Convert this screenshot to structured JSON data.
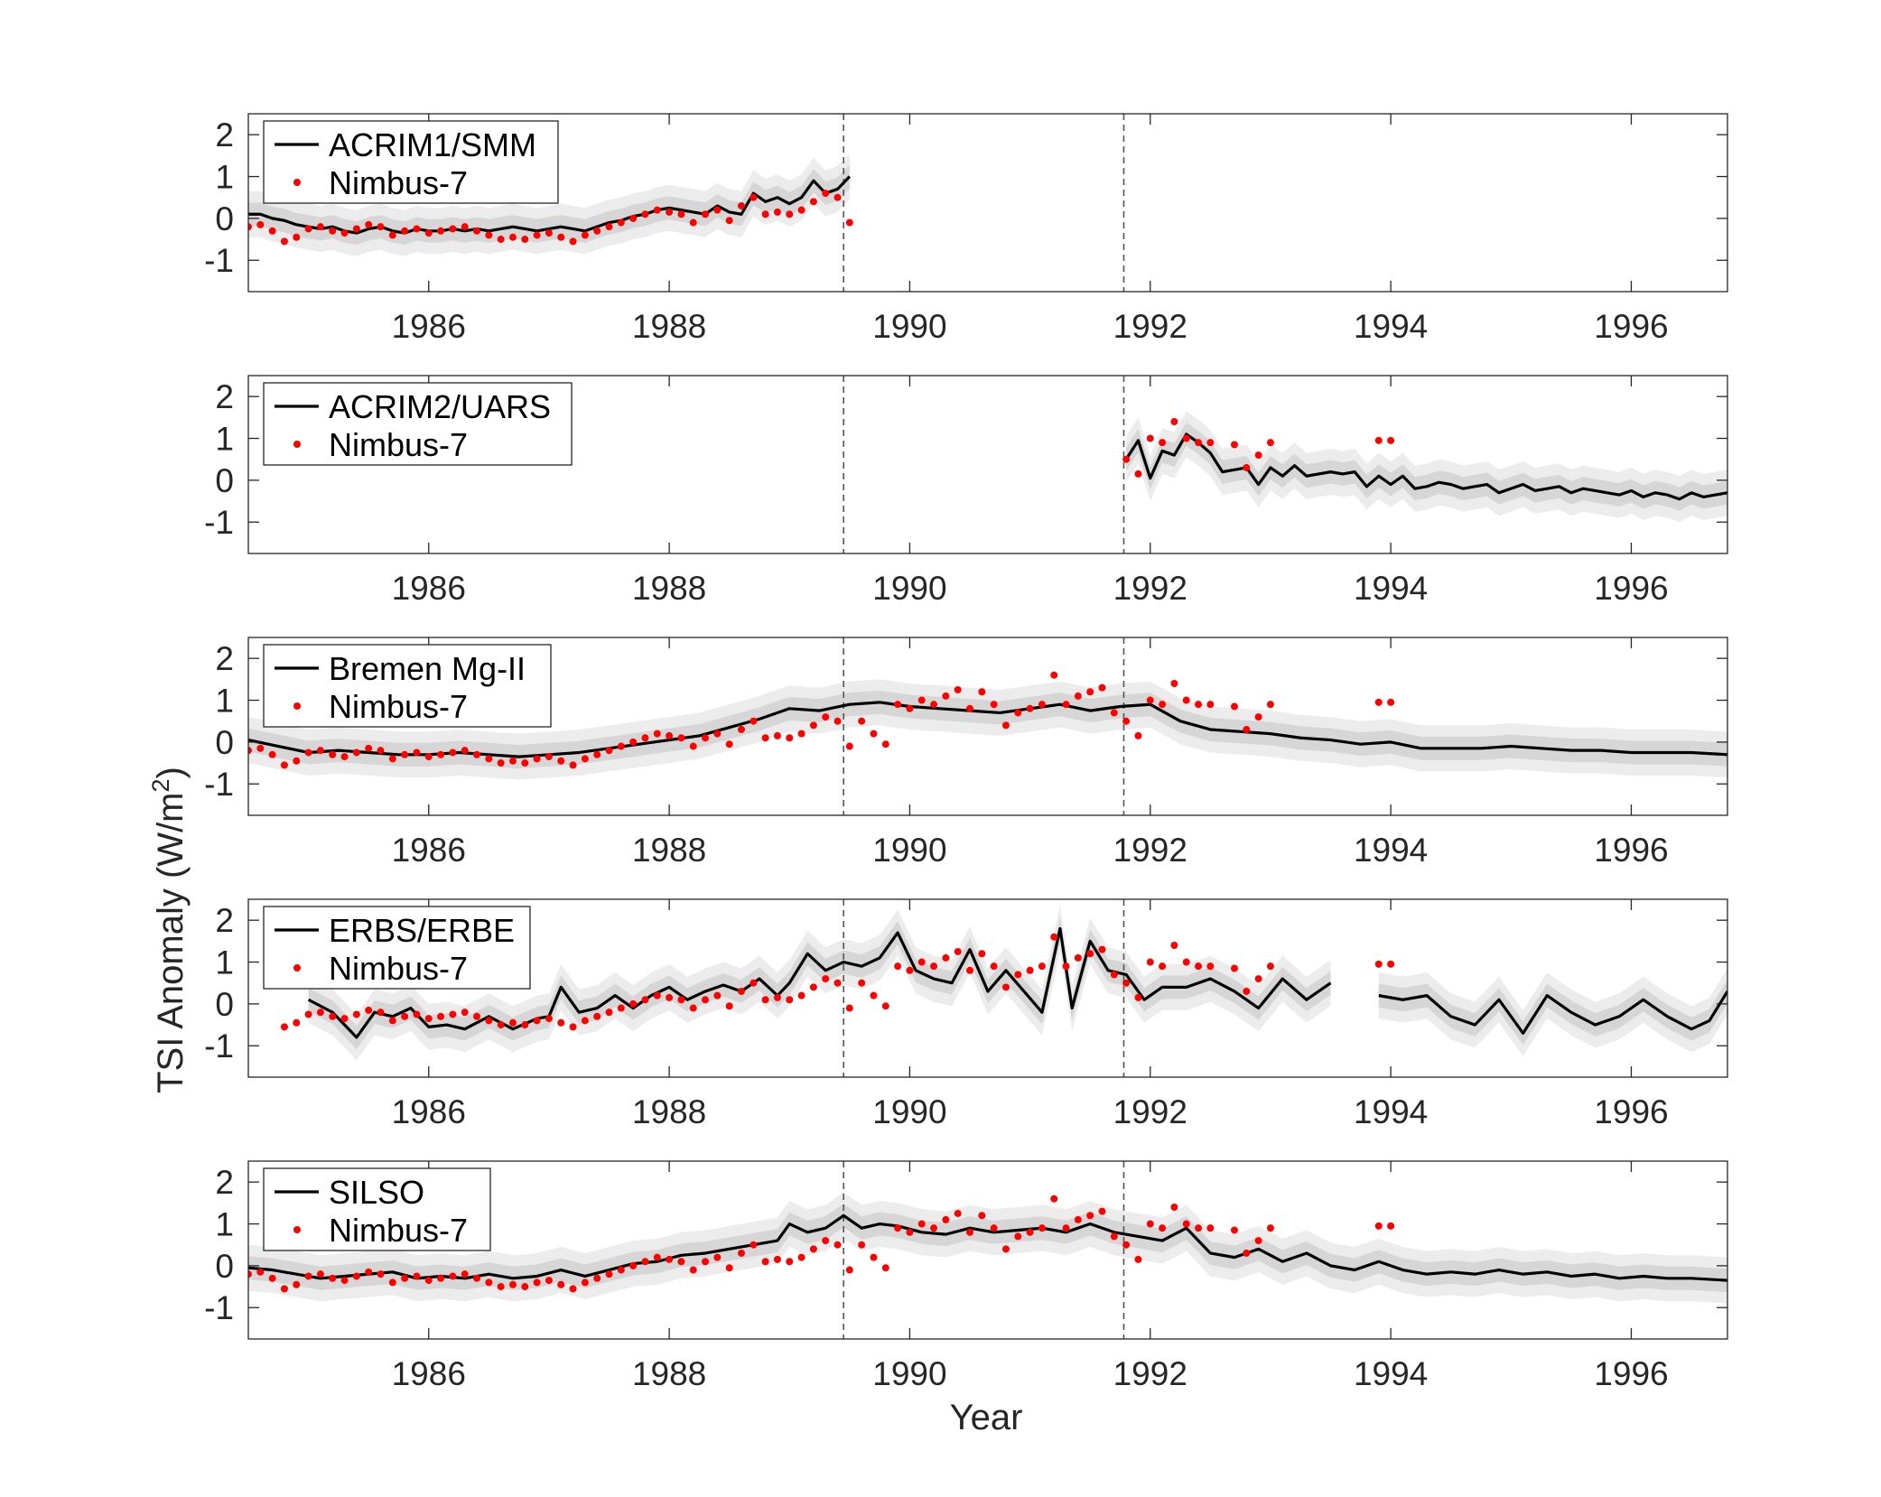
{
  "chart_data": {
    "type": "line",
    "xlabel": "Year",
    "ylabel": "TSI Anomaly (W/m",
    "ylabel_superscript": "2",
    "ylabel_close": ")",
    "xlim": [
      1984.5,
      1996.8
    ],
    "ylim": [
      -1.75,
      2.5
    ],
    "xticks": [
      1986,
      1988,
      1990,
      1992,
      1994,
      1996
    ],
    "xtick_labels": [
      "1986",
      "1988",
      "1990",
      "1992",
      "1994",
      "1996"
    ],
    "yticks": [
      -1,
      0,
      1,
      2
    ],
    "ytick_labels": [
      "-1",
      "0",
      "1",
      "2"
    ],
    "vlines": [
      1989.45,
      1991.78
    ],
    "band_outer": 0.55,
    "band_inner": 0.28,
    "colors": {
      "line": "#000000",
      "dots": "#ff0000",
      "band_outer": "#ececec",
      "band_inner": "#d6d6d6",
      "vline": "#555555"
    },
    "nimbus7": {
      "name": "Nimbus-7",
      "x": [
        1984.5,
        1984.6,
        1984.7,
        1984.8,
        1984.9,
        1985.0,
        1985.1,
        1985.2,
        1985.3,
        1985.4,
        1985.5,
        1985.6,
        1985.7,
        1985.8,
        1985.9,
        1986.0,
        1986.1,
        1986.2,
        1986.3,
        1986.4,
        1986.5,
        1986.6,
        1986.7,
        1986.8,
        1986.9,
        1987.0,
        1987.1,
        1987.2,
        1987.3,
        1987.4,
        1987.5,
        1987.6,
        1987.7,
        1987.8,
        1987.9,
        1988.0,
        1988.1,
        1988.2,
        1988.3,
        1988.4,
        1988.5,
        1988.6,
        1988.7,
        1988.8,
        1988.9,
        1989.0,
        1989.1,
        1989.2,
        1989.3,
        1989.4,
        1989.5,
        1989.6,
        1989.7,
        1989.8,
        1989.9,
        1990.0,
        1990.1,
        1990.2,
        1990.3,
        1990.4,
        1990.5,
        1990.6,
        1990.7,
        1990.8,
        1990.9,
        1991.0,
        1991.1,
        1991.2,
        1991.3,
        1991.4,
        1991.5,
        1991.6,
        1991.7,
        1991.8,
        1991.9,
        1992.0,
        1992.1,
        1992.2,
        1992.3,
        1992.4,
        1992.5,
        1992.7,
        1992.8,
        1992.9,
        1993.0,
        1993.9,
        1994.0
      ],
      "y": [
        -0.2,
        -0.15,
        -0.3,
        -0.55,
        -0.45,
        -0.25,
        -0.2,
        -0.3,
        -0.35,
        -0.25,
        -0.15,
        -0.2,
        -0.4,
        -0.3,
        -0.25,
        -0.35,
        -0.3,
        -0.25,
        -0.2,
        -0.3,
        -0.4,
        -0.5,
        -0.45,
        -0.5,
        -0.4,
        -0.35,
        -0.45,
        -0.55,
        -0.4,
        -0.3,
        -0.2,
        -0.1,
        0.0,
        0.1,
        0.2,
        0.15,
        0.1,
        -0.1,
        0.1,
        0.2,
        -0.05,
        0.3,
        0.5,
        0.1,
        0.15,
        0.1,
        0.2,
        0.4,
        0.6,
        0.5,
        -0.1,
        0.5,
        0.2,
        -0.05,
        0.9,
        0.8,
        1.0,
        0.9,
        1.1,
        1.25,
        0.8,
        1.2,
        0.9,
        0.4,
        0.7,
        0.8,
        0.9,
        1.6,
        0.9,
        1.1,
        1.2,
        1.3,
        0.7,
        0.5,
        0.15,
        1.0,
        0.9,
        1.4,
        1.0,
        0.9,
        0.9,
        0.85,
        0.3,
        0.6,
        0.9,
        0.95,
        0.95
      ]
    },
    "panels": [
      {
        "name": "ACRIM1/SMM",
        "legend": [
          "ACRIM1/SMM",
          "Nimbus-7"
        ],
        "nimbus_range": [
          1984.5,
          1989.5
        ],
        "x": [
          1984.5,
          1984.6,
          1984.7,
          1984.8,
          1984.9,
          1985.0,
          1985.1,
          1985.2,
          1985.3,
          1985.4,
          1985.5,
          1985.6,
          1985.7,
          1985.8,
          1985.9,
          1986.0,
          1986.1,
          1986.2,
          1986.3,
          1986.4,
          1986.5,
          1986.6,
          1986.7,
          1986.8,
          1986.9,
          1987.0,
          1987.1,
          1987.2,
          1987.3,
          1987.4,
          1987.5,
          1987.6,
          1987.7,
          1987.8,
          1987.9,
          1988.0,
          1988.1,
          1988.2,
          1988.3,
          1988.4,
          1988.5,
          1988.6,
          1988.7,
          1988.8,
          1988.9,
          1989.0,
          1989.1,
          1989.2,
          1989.3,
          1989.4,
          1989.5
        ],
        "y": [
          0.1,
          0.1,
          0.0,
          -0.05,
          -0.15,
          -0.2,
          -0.25,
          -0.2,
          -0.3,
          -0.35,
          -0.25,
          -0.2,
          -0.3,
          -0.35,
          -0.25,
          -0.3,
          -0.3,
          -0.25,
          -0.3,
          -0.25,
          -0.3,
          -0.25,
          -0.2,
          -0.25,
          -0.3,
          -0.25,
          -0.2,
          -0.25,
          -0.3,
          -0.2,
          -0.1,
          -0.05,
          0.05,
          0.1,
          0.2,
          0.25,
          0.2,
          0.15,
          0.1,
          0.3,
          0.15,
          0.1,
          0.6,
          0.4,
          0.5,
          0.35,
          0.5,
          0.9,
          0.6,
          0.7,
          1.0
        ]
      },
      {
        "name": "ACRIM2/UARS",
        "legend": [
          "ACRIM2/UARS",
          "Nimbus-7"
        ],
        "nimbus_range": [
          1991.8,
          1994.1
        ],
        "x": [
          1991.8,
          1991.9,
          1992.0,
          1992.1,
          1992.2,
          1992.3,
          1992.4,
          1992.5,
          1992.6,
          1992.7,
          1992.8,
          1992.9,
          1993.0,
          1993.1,
          1993.2,
          1993.3,
          1993.4,
          1993.5,
          1993.6,
          1993.7,
          1993.8,
          1993.9,
          1994.0,
          1994.1,
          1994.2,
          1994.3,
          1994.4,
          1994.5,
          1994.6,
          1994.7,
          1994.8,
          1994.9,
          1995.0,
          1995.1,
          1995.2,
          1995.3,
          1995.4,
          1995.5,
          1995.6,
          1995.7,
          1995.8,
          1995.9,
          1996.0,
          1996.1,
          1996.2,
          1996.3,
          1996.4,
          1996.5,
          1996.6,
          1996.7,
          1996.8
        ],
        "y": [
          0.5,
          0.95,
          0.05,
          0.7,
          0.6,
          1.1,
          0.9,
          0.65,
          0.2,
          0.25,
          0.3,
          -0.1,
          0.3,
          0.1,
          0.35,
          0.1,
          0.15,
          0.2,
          0.15,
          0.2,
          -0.15,
          0.1,
          -0.1,
          0.1,
          -0.2,
          -0.15,
          -0.05,
          -0.1,
          -0.2,
          -0.15,
          -0.1,
          -0.3,
          -0.2,
          -0.1,
          -0.25,
          -0.2,
          -0.15,
          -0.3,
          -0.2,
          -0.25,
          -0.3,
          -0.35,
          -0.25,
          -0.4,
          -0.3,
          -0.35,
          -0.45,
          -0.3,
          -0.4,
          -0.35,
          -0.3
        ]
      },
      {
        "name": "Bremen Mg-II",
        "legend": [
          "Bremen Mg-II",
          "Nimbus-7"
        ],
        "nimbus_range": [
          1984.5,
          1994.1
        ],
        "x": [
          1984.5,
          1984.75,
          1985.0,
          1985.25,
          1985.5,
          1985.75,
          1986.0,
          1986.25,
          1986.5,
          1986.75,
          1987.0,
          1987.25,
          1987.5,
          1987.75,
          1988.0,
          1988.25,
          1988.5,
          1988.75,
          1989.0,
          1989.25,
          1989.5,
          1989.75,
          1990.0,
          1990.25,
          1990.5,
          1990.75,
          1991.0,
          1991.25,
          1991.5,
          1991.75,
          1992.0,
          1992.25,
          1992.5,
          1992.75,
          1993.0,
          1993.25,
          1993.5,
          1993.75,
          1994.0,
          1994.25,
          1994.5,
          1994.75,
          1995.0,
          1995.25,
          1995.5,
          1995.75,
          1996.0,
          1996.25,
          1996.5,
          1996.8
        ],
        "y": [
          0.05,
          -0.1,
          -0.25,
          -0.2,
          -0.25,
          -0.3,
          -0.3,
          -0.25,
          -0.3,
          -0.35,
          -0.3,
          -0.25,
          -0.15,
          -0.05,
          0.05,
          0.15,
          0.35,
          0.55,
          0.8,
          0.75,
          0.9,
          0.95,
          0.85,
          0.8,
          0.75,
          0.7,
          0.8,
          0.9,
          0.75,
          0.85,
          0.9,
          0.5,
          0.3,
          0.25,
          0.2,
          0.1,
          0.05,
          -0.05,
          0.0,
          -0.15,
          -0.15,
          -0.15,
          -0.1,
          -0.15,
          -0.2,
          -0.2,
          -0.25,
          -0.25,
          -0.25,
          -0.3
        ]
      },
      {
        "name": "ERBS/ERBE",
        "legend": [
          "ERBS/ERBE",
          "Nimbus-7"
        ],
        "nimbus_range": [
          1984.8,
          1994.1
        ],
        "gaps": [
          1993.55
        ],
        "x": [
          1985.0,
          1985.2,
          1985.4,
          1985.55,
          1985.7,
          1985.85,
          1986.0,
          1986.15,
          1986.3,
          1986.5,
          1986.7,
          1986.9,
          1987.0,
          1987.1,
          1987.25,
          1987.4,
          1987.55,
          1987.7,
          1987.85,
          1988.0,
          1988.15,
          1988.3,
          1988.45,
          1988.6,
          1988.75,
          1988.9,
          1989.0,
          1989.15,
          1989.3,
          1989.45,
          1989.6,
          1989.75,
          1989.9,
          1990.05,
          1990.2,
          1990.35,
          1990.5,
          1990.65,
          1990.8,
          1990.95,
          1991.1,
          1991.25,
          1991.35,
          1991.5,
          1991.65,
          1991.8,
          1991.95,
          1992.1,
          1992.3,
          1992.5,
          1992.7,
          1992.9,
          1993.1,
          1993.3,
          1993.5,
          1993.9,
          1994.1,
          1994.3,
          1994.5,
          1994.7,
          1994.9,
          1995.1,
          1995.3,
          1995.5,
          1995.7,
          1995.9,
          1996.1,
          1996.3,
          1996.5,
          1996.65,
          1996.8
        ],
        "y": [
          0.1,
          -0.2,
          -0.8,
          -0.2,
          -0.3,
          -0.1,
          -0.55,
          -0.5,
          -0.6,
          -0.3,
          -0.6,
          -0.35,
          -0.3,
          0.4,
          -0.2,
          -0.1,
          0.2,
          -0.1,
          0.2,
          0.4,
          0.1,
          0.3,
          0.45,
          0.3,
          0.6,
          0.2,
          0.5,
          1.2,
          0.8,
          1.0,
          0.9,
          1.1,
          1.7,
          0.8,
          0.6,
          0.5,
          1.3,
          0.3,
          0.8,
          0.3,
          -0.2,
          1.8,
          -0.1,
          1.5,
          0.8,
          0.7,
          0.1,
          0.4,
          0.4,
          0.6,
          0.3,
          -0.1,
          0.6,
          0.1,
          0.5,
          0.2,
          0.1,
          0.2,
          -0.3,
          -0.5,
          0.1,
          -0.7,
          0.2,
          -0.2,
          -0.5,
          -0.3,
          0.1,
          -0.3,
          -0.6,
          -0.4,
          0.3
        ]
      },
      {
        "name": "SILSO",
        "legend": [
          "SILSO",
          "Nimbus-7"
        ],
        "nimbus_range": [
          1984.5,
          1994.1
        ],
        "x": [
          1984.5,
          1984.7,
          1984.9,
          1985.1,
          1985.3,
          1985.5,
          1985.7,
          1985.9,
          1986.1,
          1986.3,
          1986.5,
          1986.7,
          1986.9,
          1987.1,
          1987.3,
          1987.5,
          1987.7,
          1987.9,
          1988.1,
          1988.3,
          1988.5,
          1988.7,
          1988.9,
          1989.0,
          1989.15,
          1989.3,
          1989.45,
          1989.6,
          1989.75,
          1989.9,
          1990.1,
          1990.3,
          1990.5,
          1990.7,
          1990.9,
          1991.1,
          1991.3,
          1991.5,
          1991.7,
          1991.9,
          1992.1,
          1992.3,
          1992.5,
          1992.7,
          1992.9,
          1993.1,
          1993.3,
          1993.5,
          1993.7,
          1993.9,
          1994.1,
          1994.3,
          1994.5,
          1994.7,
          1994.9,
          1995.1,
          1995.3,
          1995.5,
          1995.7,
          1995.9,
          1996.1,
          1996.3,
          1996.5,
          1996.8
        ],
        "y": [
          -0.05,
          -0.1,
          -0.2,
          -0.3,
          -0.25,
          -0.2,
          -0.15,
          -0.3,
          -0.25,
          -0.3,
          -0.2,
          -0.3,
          -0.25,
          -0.1,
          -0.25,
          -0.1,
          0.05,
          0.1,
          0.25,
          0.3,
          0.4,
          0.5,
          0.6,
          1.0,
          0.8,
          0.9,
          1.2,
          0.9,
          1.0,
          0.95,
          0.8,
          0.75,
          0.9,
          0.8,
          0.85,
          0.9,
          0.8,
          1.0,
          0.8,
          0.7,
          0.6,
          0.9,
          0.3,
          0.2,
          0.4,
          0.1,
          0.3,
          0.0,
          -0.1,
          0.1,
          -0.1,
          -0.2,
          -0.15,
          -0.2,
          -0.1,
          -0.2,
          -0.15,
          -0.25,
          -0.2,
          -0.3,
          -0.25,
          -0.3,
          -0.3,
          -0.35
        ]
      }
    ]
  }
}
